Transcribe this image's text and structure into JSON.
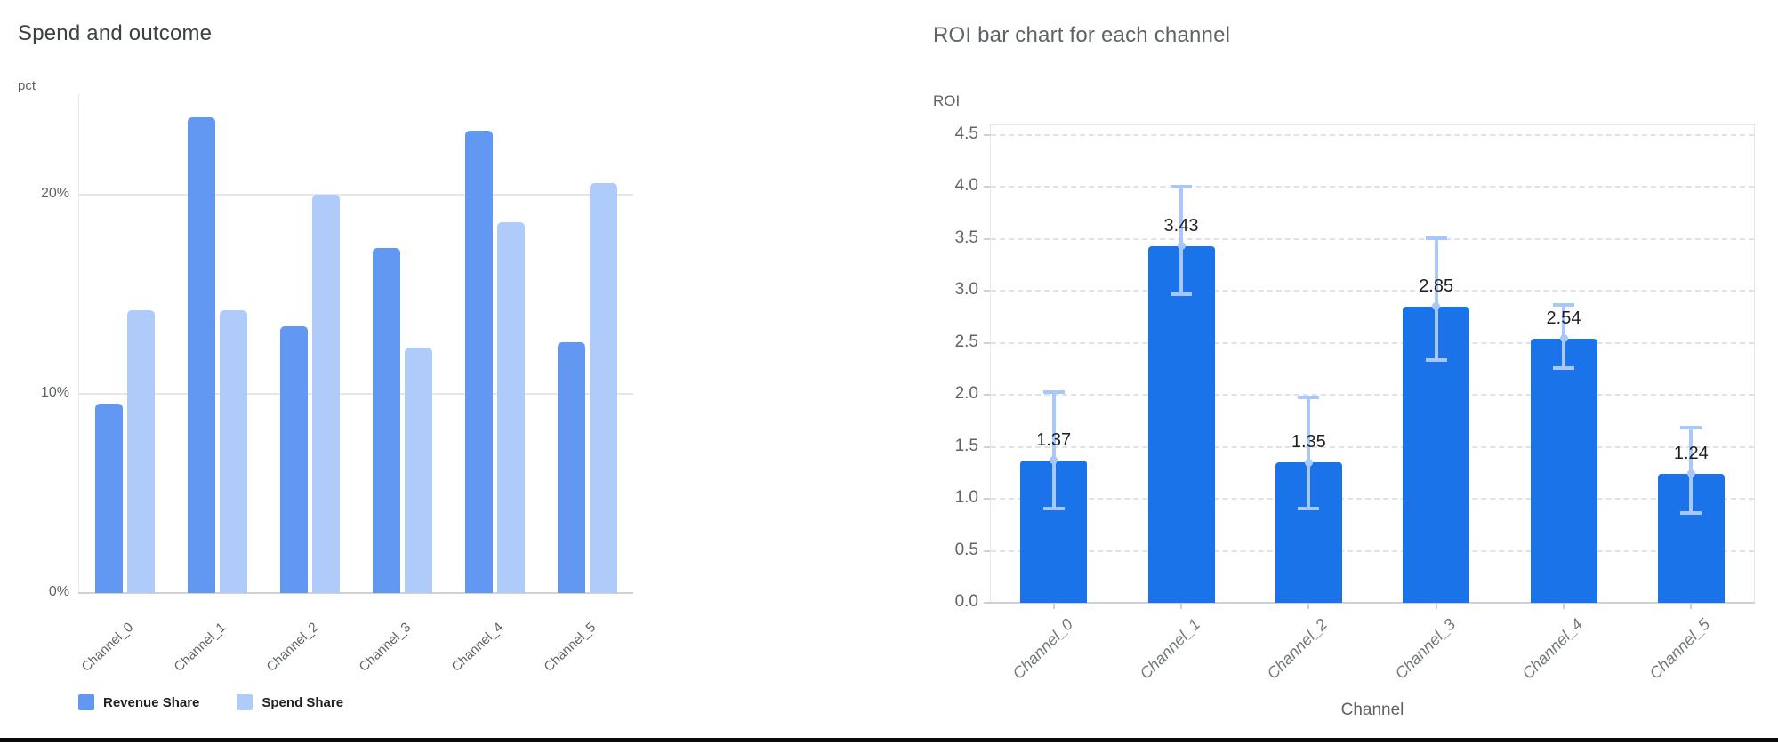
{
  "window": {
    "background": "#ffffff",
    "bottom_border_color": "#0b0b0b"
  },
  "chart_data": [
    {
      "id": "spend-outcome",
      "type": "bar",
      "title": "Spend and outcome",
      "ylabel": "pct",
      "xlabel": "",
      "categories": [
        "Channel_0",
        "Channel_1",
        "Channel_2",
        "Channel_3",
        "Channel_4",
        "Channel_5"
      ],
      "series": [
        {
          "name": "Revenue Share",
          "color": "#6398f2",
          "values": [
            9.5,
            23.9,
            13.4,
            17.3,
            23.2,
            12.6
          ]
        },
        {
          "name": "Spend Share",
          "color": "#aecbfa",
          "values": [
            14.2,
            14.2,
            20.0,
            12.3,
            18.6,
            20.6
          ]
        }
      ],
      "unit": "%",
      "ylim": [
        0,
        25.3
      ],
      "y_ticks": [
        {
          "value": 0,
          "label": "0%"
        },
        {
          "value": 10,
          "label": "10%"
        },
        {
          "value": 20,
          "label": "20%"
        }
      ],
      "grid": "solid",
      "legend_position": "bottom-left"
    },
    {
      "id": "roi-by-channel",
      "type": "bar",
      "title": "ROI bar chart for each channel",
      "ylabel": "ROI",
      "xlabel": "Channel",
      "categories": [
        "Channel_0",
        "Channel_1",
        "Channel_2",
        "Channel_3",
        "Channel_4",
        "Channel_5"
      ],
      "series": [
        {
          "name": "ROI",
          "color": "#1a73e8",
          "values": [
            1.37,
            3.43,
            1.35,
            2.85,
            2.54,
            1.24
          ],
          "data_labels": [
            "1.37",
            "3.43",
            "1.35",
            "2.85",
            "2.54",
            "1.24"
          ],
          "error_low": [
            0.89,
            2.95,
            0.89,
            2.32,
            2.24,
            0.85
          ],
          "error_high": [
            2.04,
            4.02,
            1.99,
            3.52,
            2.88,
            1.7
          ],
          "error_color": "#a8c7fa"
        }
      ],
      "ylim": [
        0,
        4.6
      ],
      "y_ticks": [
        {
          "value": 0,
          "label": "0.0"
        },
        {
          "value": 0.5,
          "label": "0.5"
        },
        {
          "value": 1,
          "label": "1.0"
        },
        {
          "value": 1.5,
          "label": "1.5"
        },
        {
          "value": 2,
          "label": "2.0"
        },
        {
          "value": 2.5,
          "label": "2.5"
        },
        {
          "value": 3,
          "label": "3.0"
        },
        {
          "value": 3.5,
          "label": "3.5"
        },
        {
          "value": 4,
          "label": "4.0"
        },
        {
          "value": 4.5,
          "label": "4.5"
        }
      ],
      "grid": "dashed"
    }
  ]
}
